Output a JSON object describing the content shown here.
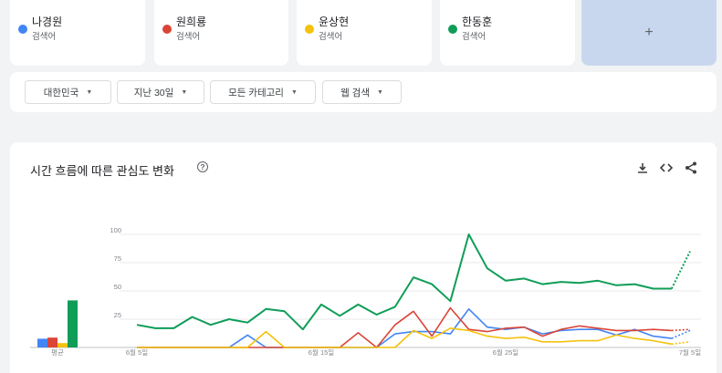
{
  "terms": [
    {
      "name": "나경원",
      "type": "검색어",
      "color": "#4285f4"
    },
    {
      "name": "원희룡",
      "type": "검색어",
      "color": "#db4437"
    },
    {
      "name": "윤상현",
      "type": "검색어",
      "color": "#f4c20d"
    },
    {
      "name": "한동훈",
      "type": "검색어",
      "color": "#0f9d58"
    }
  ],
  "add_label": "+",
  "filters": [
    {
      "label": "대한민국"
    },
    {
      "label": "지난 30일"
    },
    {
      "label": "모든 카테고리"
    },
    {
      "label": "웹 검색"
    }
  ],
  "chart": {
    "title": "시간 흐름에 따른 관심도 변화",
    "help": "?",
    "avg_label": "평균",
    "y_ticks": [
      "100",
      "75",
      "50",
      "25"
    ],
    "x_labels": [
      "6월 5일",
      "6월 15일",
      "6월 25일",
      "7월 5일"
    ]
  },
  "chart_data": {
    "type": "line",
    "x": [
      "6/5",
      "6/6",
      "6/7",
      "6/8",
      "6/9",
      "6/10",
      "6/11",
      "6/12",
      "6/13",
      "6/14",
      "6/15",
      "6/16",
      "6/17",
      "6/18",
      "6/19",
      "6/20",
      "6/21",
      "6/22",
      "6/23",
      "6/24",
      "6/25",
      "6/26",
      "6/27",
      "6/28",
      "6/29",
      "6/30",
      "7/1",
      "7/2",
      "7/3",
      "7/4",
      "7/5"
    ],
    "series": [
      {
        "name": "나경원",
        "color": "#4285f4",
        "values": [
          0,
          0,
          0,
          0,
          0,
          0,
          11,
          0,
          0,
          0,
          0,
          0,
          0,
          0,
          12,
          14,
          14,
          12,
          34,
          18,
          16,
          18,
          12,
          15,
          16,
          16,
          11,
          16,
          10,
          8,
          15
        ]
      },
      {
        "name": "원희룡",
        "color": "#db4437",
        "values": [
          0,
          0,
          0,
          0,
          0,
          0,
          0,
          0,
          0,
          0,
          0,
          0,
          13,
          0,
          20,
          32,
          10,
          35,
          16,
          14,
          17,
          18,
          10,
          16,
          19,
          17,
          15,
          15,
          16,
          15,
          16
        ]
      },
      {
        "name": "윤상현",
        "color": "#f4c20d",
        "values": [
          0,
          0,
          0,
          0,
          0,
          0,
          0,
          14,
          0,
          0,
          0,
          0,
          0,
          0,
          0,
          15,
          8,
          17,
          15,
          10,
          8,
          9,
          5,
          5,
          6,
          6,
          11,
          8,
          6,
          3,
          5
        ]
      },
      {
        "name": "한동훈",
        "color": "#0f9d58",
        "values": [
          20,
          17,
          17,
          27,
          20,
          25,
          22,
          34,
          32,
          16,
          38,
          28,
          38,
          29,
          36,
          62,
          56,
          41,
          100,
          70,
          59,
          61,
          56,
          58,
          57,
          59,
          55,
          56,
          52,
          52,
          85
        ]
      }
    ],
    "averages": [
      8,
      9,
      4,
      43
    ],
    "ylim": [
      0,
      100
    ],
    "partial_last_point": true
  }
}
